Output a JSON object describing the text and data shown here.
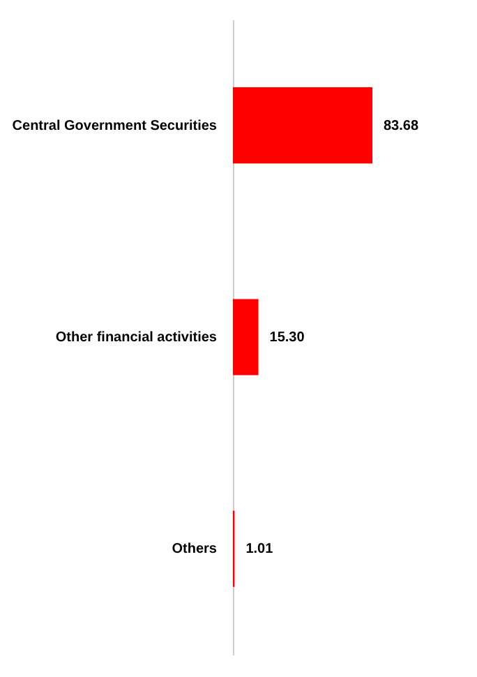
{
  "chart_data": {
    "type": "bar",
    "orientation": "horizontal",
    "categories": [
      "Central Government Securities",
      "Other financial activities",
      "Others"
    ],
    "values": [
      83.68,
      15.3,
      1.01
    ],
    "value_labels": [
      "83.68",
      "15.30",
      "1.01"
    ],
    "color": "#ff0000",
    "grid": false
  }
}
